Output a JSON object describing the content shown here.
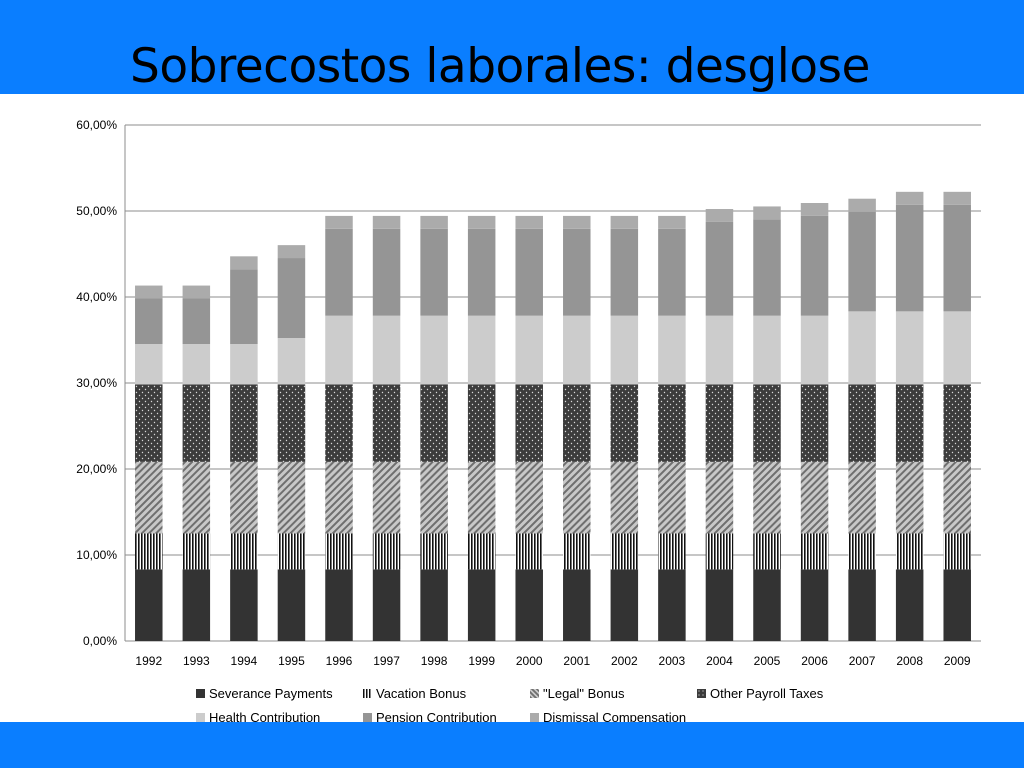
{
  "slide": {
    "title": "Sobrecostos laborales: desglose"
  },
  "chart_data": {
    "type": "bar",
    "stacked": true,
    "title": "",
    "xlabel": "",
    "ylabel": "",
    "ylim": [
      0,
      60
    ],
    "y_ticks": [
      "0,00%",
      "10,00%",
      "20,00%",
      "30,00%",
      "40,00%",
      "50,00%",
      "60,00%"
    ],
    "gridlines": true,
    "legend_position": "bottom",
    "categories": [
      "1992",
      "1993",
      "1994",
      "1995",
      "1996",
      "1997",
      "1998",
      "1999",
      "2000",
      "2001",
      "2002",
      "2003",
      "2004",
      "2005",
      "2006",
      "2007",
      "2008",
      "2009"
    ],
    "series": [
      {
        "name": "Severance Payments",
        "color": "#333333",
        "pattern": "solid",
        "values": [
          8.33,
          8.33,
          8.33,
          8.33,
          8.33,
          8.33,
          8.33,
          8.33,
          8.33,
          8.33,
          8.33,
          8.33,
          8.33,
          8.33,
          8.33,
          8.33,
          8.33,
          8.33
        ]
      },
      {
        "name": "Vacation Bonus",
        "color": "#111111",
        "pattern": "vertical-stripes",
        "values": [
          4.17,
          4.17,
          4.17,
          4.17,
          4.17,
          4.17,
          4.17,
          4.17,
          4.17,
          4.17,
          4.17,
          4.17,
          4.17,
          4.17,
          4.17,
          4.17,
          4.17,
          4.17
        ]
      },
      {
        "name": "\"Legal\" Bonus",
        "color": "#8a8a8a",
        "pattern": "diagonal-stripes",
        "values": [
          8.33,
          8.33,
          8.33,
          8.33,
          8.33,
          8.33,
          8.33,
          8.33,
          8.33,
          8.33,
          8.33,
          8.33,
          8.33,
          8.33,
          8.33,
          8.33,
          8.33,
          8.33
        ]
      },
      {
        "name": "Other Payroll Taxes",
        "color": "#4a4a4a",
        "pattern": "dots",
        "values": [
          9.0,
          9.0,
          9.0,
          9.0,
          9.0,
          9.0,
          9.0,
          9.0,
          9.0,
          9.0,
          9.0,
          9.0,
          9.0,
          9.0,
          9.0,
          9.0,
          9.0,
          9.0
        ]
      },
      {
        "name": "Health Contribution",
        "color": "#cccccc",
        "pattern": "solid",
        "values": [
          4.7,
          4.7,
          4.7,
          5.4,
          8.0,
          8.0,
          8.0,
          8.0,
          8.0,
          8.0,
          8.0,
          8.0,
          8.0,
          8.0,
          8.0,
          8.5,
          8.5,
          8.5
        ]
      },
      {
        "name": "Pension Contribution",
        "color": "#959595",
        "pattern": "solid",
        "values": [
          5.3,
          5.3,
          8.7,
          9.3,
          10.1,
          10.1,
          10.1,
          10.1,
          10.1,
          10.1,
          10.1,
          10.1,
          10.9,
          11.2,
          11.6,
          11.6,
          12.4,
          12.4
        ]
      },
      {
        "name": "Dismissal Compensation",
        "color": "#ababab",
        "pattern": "solid",
        "values": [
          1.5,
          1.5,
          1.5,
          1.5,
          1.5,
          1.5,
          1.5,
          1.5,
          1.5,
          1.5,
          1.5,
          1.5,
          1.5,
          1.5,
          1.5,
          1.5,
          1.5,
          1.5
        ]
      }
    ]
  }
}
